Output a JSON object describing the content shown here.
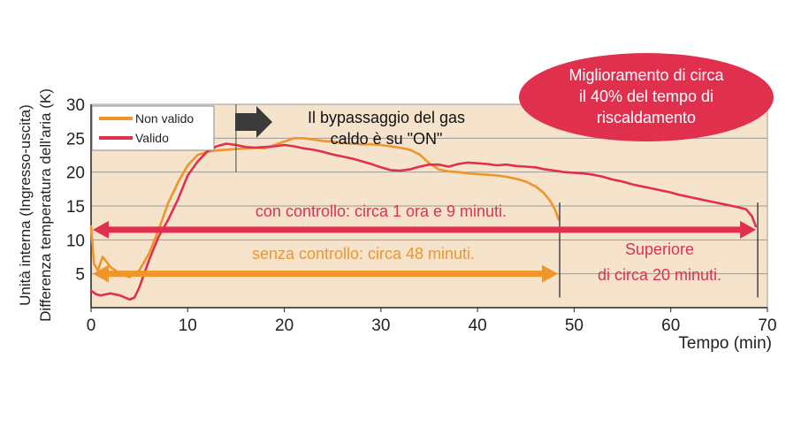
{
  "chart_data": {
    "type": "line",
    "ylabel_line1": "Unità interna (Ingresso-uscita)",
    "ylabel_line2": "Differenza temperatura dell'aria (K)",
    "xlabel": "Tempo (min)",
    "xlim": [
      0,
      70
    ],
    "ylim": [
      0,
      30
    ],
    "xticks": [
      0,
      10,
      20,
      30,
      40,
      50,
      60,
      70
    ],
    "yticks": [
      5,
      10,
      15,
      20,
      25,
      30
    ],
    "grid": "horizontal",
    "legend_position": "top-left",
    "series": [
      {
        "name": "Non valido",
        "color": "#f0952a",
        "x": [
          0,
          0.3,
          0.7,
          1.2,
          2,
          3,
          4,
          5,
          6,
          7,
          8,
          9,
          10,
          11,
          12,
          13,
          14,
          15,
          16,
          17,
          18,
          19,
          20,
          21,
          22,
          23,
          24,
          25,
          26,
          27,
          28,
          29,
          30,
          31,
          32,
          33,
          34,
          35,
          36,
          37,
          38,
          39,
          40,
          41,
          42,
          43,
          44,
          45,
          46,
          46.8,
          47.5,
          48,
          48.4
        ],
        "y": [
          12,
          6.5,
          5.5,
          7.5,
          6,
          5,
          4.5,
          5.5,
          8,
          11.5,
          15.5,
          18.5,
          21,
          22.5,
          23,
          23.2,
          23.3,
          23.4,
          23.5,
          23.6,
          23.5,
          24,
          24.5,
          25,
          25,
          24.8,
          24.6,
          24.5,
          24.3,
          24.2,
          24.1,
          24.1,
          24,
          23.8,
          23.6,
          23.3,
          22.6,
          21.3,
          20.4,
          20.1,
          20,
          19.8,
          19.7,
          19.6,
          19.5,
          19.3,
          19,
          18.6,
          17.9,
          17,
          15.8,
          14.5,
          13
        ]
      },
      {
        "name": "Valido",
        "color": "#e0304e",
        "x": [
          0,
          0.5,
          1,
          2,
          3,
          4,
          4.5,
          5,
          6,
          7,
          8,
          9,
          10,
          11,
          12,
          13,
          14,
          15,
          16,
          17,
          18,
          19,
          20,
          21,
          22,
          23,
          24,
          25,
          26,
          27,
          28,
          29,
          30,
          31,
          32,
          33,
          34,
          35,
          36,
          37,
          38,
          39,
          40,
          41,
          42,
          43,
          44,
          45,
          46,
          47,
          48,
          49,
          50,
          51,
          52,
          53,
          54,
          55,
          56,
          57,
          58,
          59,
          60,
          61,
          62,
          63,
          64,
          65,
          66,
          67,
          67.8,
          68.4,
          68.8
        ],
        "y": [
          2.5,
          2,
          1.8,
          2.1,
          1.8,
          1.2,
          1.5,
          3,
          7,
          10.5,
          13,
          16,
          19.5,
          21.5,
          23,
          23.8,
          24.2,
          24,
          23.7,
          23.6,
          23.7,
          23.8,
          24,
          23.8,
          23.5,
          23.3,
          23,
          22.6,
          22.3,
          22,
          21.6,
          21.2,
          20.7,
          20.3,
          20.2,
          20.4,
          20.8,
          21.1,
          21.1,
          20.8,
          21.2,
          21.4,
          21.3,
          21.2,
          21,
          21.1,
          20.9,
          20.8,
          20.7,
          20.4,
          20.2,
          20,
          19.9,
          19.8,
          19.6,
          19.3,
          18.9,
          18.6,
          18.2,
          17.9,
          17.6,
          17.3,
          17,
          16.6,
          16.3,
          16,
          15.7,
          15.4,
          15.1,
          14.8,
          14.5,
          13.5,
          12
        ]
      }
    ],
    "annotations": {
      "bypass_line1": "Il bypassaggio del gas",
      "bypass_line2": "caldo è su \"ON\"",
      "bypass_x": 15,
      "badge_line1": "Miglioramento di circa",
      "badge_line2": "il 40% del tempo di",
      "badge_line3": "riscaldamento",
      "badge_color": "#e0304e",
      "with_control_label": "con controllo: circa 1 ora e 9 minuti.",
      "with_control_range": [
        0,
        69
      ],
      "with_control_y": 11.5,
      "without_control_label": "senza controllo: circa 48 minuti.",
      "without_control_range": [
        0,
        48.5
      ],
      "without_control_y": 5,
      "superior_line1": "Superiore",
      "superior_line2": "di circa 20 minuti.",
      "marker_x": [
        48.5,
        69
      ]
    },
    "plot_background": "#f6e3cc"
  }
}
